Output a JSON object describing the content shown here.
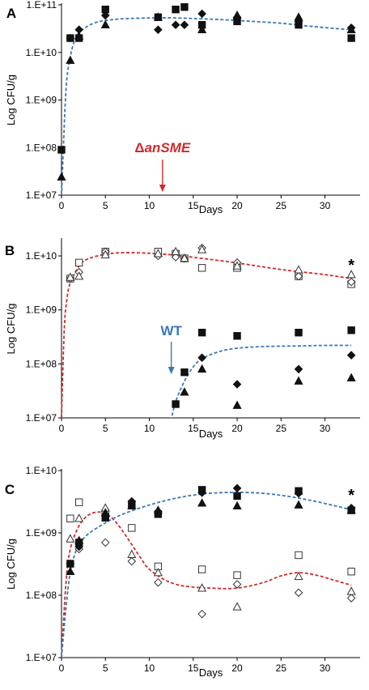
{
  "colors": {
    "blue_fit": "#3a78b8",
    "red_fit": "#d02a2a",
    "red_annotation": "#d02a2a",
    "blue_annotation": "#3a78b8"
  },
  "chart_data": [
    {
      "type": "scatter",
      "panel": "A",
      "xlabel": "Days",
      "ylabel": "Log CFU/g",
      "xlim": [
        0,
        34
      ],
      "ylim_log10": [
        7,
        11
      ],
      "x_ticks": [
        0,
        5,
        10,
        15,
        20,
        25,
        30
      ],
      "y_ticks": [
        "1.E+07",
        "1.E+08",
        "1.E+09",
        "1.E+10",
        "1.E+11"
      ],
      "annotation": {
        "text_prefix": "Δ",
        "text_main": "anSME",
        "x": 11.5,
        "color": "#d02a2a"
      },
      "series": [
        {
          "marker": "square",
          "fill": "filled",
          "points": [
            [
              0,
              90000000.0
            ],
            [
              1,
              20000000000.0
            ],
            [
              2,
              20000000000.0
            ],
            [
              5,
              80000000000.0
            ],
            [
              11,
              55000000000.0
            ],
            [
              13,
              80000000000.0
            ],
            [
              14,
              90000000000.0
            ],
            [
              16,
              38000000000.0
            ],
            [
              20,
              45000000000.0
            ],
            [
              27,
              38000000000.0
            ],
            [
              33,
              20000000000.0
            ]
          ]
        },
        {
          "marker": "diamond",
          "fill": "filled",
          "points": [
            [
              1,
              20000000000.0
            ],
            [
              2,
              30000000000.0
            ],
            [
              5,
              60000000000.0
            ],
            [
              11,
              30000000000.0
            ],
            [
              13,
              38000000000.0
            ],
            [
              14,
              38000000000.0
            ],
            [
              16,
              65000000000.0
            ],
            [
              20,
              55000000000.0
            ],
            [
              27,
              45000000000.0
            ],
            [
              33,
              33000000000.0
            ]
          ]
        },
        {
          "marker": "triangle",
          "fill": "filled",
          "points": [
            [
              0,
              24000000.0
            ],
            [
              1,
              6800000000.0
            ],
            [
              2,
              22000000000.0
            ],
            [
              5,
              38000000000.0
            ],
            [
              11,
              55000000000.0
            ],
            [
              16,
              30000000000.0
            ],
            [
              20,
              60000000000.0
            ],
            [
              27,
              55000000000.0
            ],
            [
              33,
              30000000000.0
            ]
          ]
        }
      ],
      "fits": [
        {
          "color": "#3a78b8",
          "points": [
            [
              0,
              9500000.0
            ],
            [
              0.5,
              1500000000.0
            ],
            [
              1,
              8000000000.0
            ],
            [
              1.5,
              18000000000.0
            ],
            [
              2,
              26000000000.0
            ],
            [
              3,
              36000000000.0
            ],
            [
              4,
              43000000000.0
            ],
            [
              5,
              47000000000.0
            ],
            [
              7,
              51000000000.0
            ],
            [
              10,
              53000000000.0
            ],
            [
              13,
              53000000000.0
            ],
            [
              16,
              51000000000.0
            ],
            [
              20,
              47000000000.0
            ],
            [
              25,
              41000000000.0
            ],
            [
              28,
              36000000000.0
            ],
            [
              31,
              32000000000.0
            ],
            [
              33,
              30000000000.0
            ]
          ]
        }
      ]
    },
    {
      "type": "scatter",
      "panel": "B",
      "xlabel": "Days",
      "ylabel": "Log CFU/g",
      "xlim": [
        0,
        34
      ],
      "ylim_log10": [
        7,
        10.3
      ],
      "x_ticks": [
        0,
        5,
        10,
        15,
        20,
        25,
        30
      ],
      "y_ticks": [
        "1.E+07",
        "1.E+08",
        "1.E+09",
        "1.E+10"
      ],
      "annotation": {
        "text": "WT",
        "x": 12.5,
        "color": "#3a78b8"
      },
      "asterisk": {
        "text": "*",
        "x": 33
      },
      "series": [
        {
          "marker": "square",
          "fill": "open",
          "points": [
            [
              1,
              3800000000.0
            ],
            [
              2,
              7500000000.0
            ],
            [
              5,
              12000000000.0
            ],
            [
              11,
              12000000000.0
            ],
            [
              13,
              11000000000.0
            ],
            [
              14,
              9000000000.0
            ],
            [
              16,
              6000000000.0
            ],
            [
              20,
              6000000000.0
            ],
            [
              27,
              4200000000.0
            ],
            [
              33,
              3000000000.0
            ]
          ]
        },
        {
          "marker": "diamond",
          "fill": "open",
          "points": [
            [
              1,
              3800000000.0
            ],
            [
              2,
              5000000000.0
            ],
            [
              5,
              12000000000.0
            ],
            [
              11,
              10000000000.0
            ],
            [
              13,
              9500000000.0
            ],
            [
              14,
              9000000000.0
            ],
            [
              16,
              14000000000.0
            ],
            [
              20,
              7500000000.0
            ],
            [
              27,
              4200000000.0
            ],
            [
              33,
              3300000000.0
            ]
          ]
        },
        {
          "marker": "triangle",
          "fill": "open",
          "points": [
            [
              1,
              4000000000.0
            ],
            [
              2,
              4200000000.0
            ],
            [
              5,
              10500000000.0
            ],
            [
              11,
              11000000000.0
            ],
            [
              13,
              12000000000.0
            ],
            [
              14,
              9000000000.0
            ],
            [
              16,
              13000000000.0
            ],
            [
              20,
              6500000000.0
            ],
            [
              27,
              5500000000.0
            ],
            [
              33,
              4500000000.0
            ]
          ]
        },
        {
          "marker": "square",
          "fill": "filled",
          "points": [
            [
              13,
              18000000.0
            ],
            [
              14,
              70000000.0
            ],
            [
              16,
              380000000.0
            ],
            [
              20,
              330000000.0
            ],
            [
              27,
              380000000.0
            ],
            [
              33,
              420000000.0
            ]
          ]
        },
        {
          "marker": "diamond",
          "fill": "filled",
          "points": [
            [
              16,
              130000000.0
            ],
            [
              20,
              42000000.0
            ],
            [
              27,
              80000000.0
            ],
            [
              33,
              145000000.0
            ]
          ]
        },
        {
          "marker": "triangle",
          "fill": "filled",
          "points": [
            [
              14,
              30000000.0
            ],
            [
              16,
              80000000.0
            ],
            [
              20,
              17000000.0
            ],
            [
              27,
              48000000.0
            ],
            [
              33,
              55000000.0
            ]
          ]
        }
      ],
      "fits": [
        {
          "color": "#d02a2a",
          "points": [
            [
              0,
              10000000.0
            ],
            [
              0.3,
              400000000.0
            ],
            [
              0.6,
              1500000000.0
            ],
            [
              1,
              3200000000.0
            ],
            [
              2,
              6500000000.0
            ],
            [
              3,
              8800000000.0
            ],
            [
              5,
              10700000000.0
            ],
            [
              7,
              11500000000.0
            ],
            [
              10,
              11200000000.0
            ],
            [
              13,
              10300000000.0
            ],
            [
              16,
              9000000000.0
            ],
            [
              20,
              7400000000.0
            ],
            [
              25,
              5600000000.0
            ],
            [
              30,
              4500000000.0
            ],
            [
              33,
              3800000000.0
            ]
          ]
        },
        {
          "color": "#3a78b8",
          "points": [
            [
              12,
              7500000.0
            ],
            [
              12.5,
              10000000.0
            ],
            [
              13,
              20000000.0
            ],
            [
              14,
              48000000.0
            ],
            [
              15,
              88000000.0
            ],
            [
              16,
              125000000.0
            ],
            [
              18,
              170000000.0
            ],
            [
              20,
              195000000.0
            ],
            [
              23,
              210000000.0
            ],
            [
              27,
              215000000.0
            ],
            [
              30,
              220000000.0
            ],
            [
              33,
              220000000.0
            ]
          ]
        }
      ]
    },
    {
      "type": "scatter",
      "panel": "C",
      "xlabel": "Days",
      "ylabel": "Log CFU/g",
      "xlim": [
        0,
        34
      ],
      "ylim_log10": [
        7,
        10
      ],
      "x_ticks": [
        0,
        5,
        10,
        15,
        20,
        25,
        30
      ],
      "y_ticks": [
        "1.E+07",
        "1.E+08",
        "1.E+09",
        "1.E+10"
      ],
      "asterisk": {
        "text": "*",
        "x": 33
      },
      "series": [
        {
          "marker": "square",
          "fill": "open",
          "points": [
            [
              1,
              1700000000.0
            ],
            [
              2,
              3100000000.0
            ],
            [
              5,
              2100000000.0
            ],
            [
              8,
              1200000000.0
            ],
            [
              11,
              290000000.0
            ],
            [
              16,
              260000000.0
            ],
            [
              20,
              210000000.0
            ],
            [
              27,
              440000000.0
            ],
            [
              33,
              240000000.0
            ]
          ]
        },
        {
          "marker": "diamond",
          "fill": "open",
          "points": [
            [
              1,
              320000000.0
            ],
            [
              2,
              550000000.0
            ],
            [
              5,
              700000000.0
            ],
            [
              8,
              350000000.0
            ],
            [
              11,
              160000000.0
            ],
            [
              16,
              50000000.0
            ],
            [
              20,
              150000000.0
            ],
            [
              27,
              110000000.0
            ],
            [
              33,
              90000000.0
            ]
          ]
        },
        {
          "marker": "triangle",
          "fill": "open",
          "points": [
            [
              1,
              800000000.0
            ],
            [
              2,
              1700000000.0
            ],
            [
              5,
              2500000000.0
            ],
            [
              8,
              450000000.0
            ],
            [
              11,
              230000000.0
            ],
            [
              16,
              130000000.0
            ],
            [
              20,
              65000000.0
            ],
            [
              27,
              200000000.0
            ],
            [
              33,
              115000000.0
            ]
          ]
        },
        {
          "marker": "square",
          "fill": "filled",
          "points": [
            [
              1,
              320000000.0
            ],
            [
              2,
              700000000.0
            ],
            [
              5,
              1750000000.0
            ],
            [
              8,
              2900000000.0
            ],
            [
              11,
              2000000000.0
            ],
            [
              16,
              4900000000.0
            ],
            [
              20,
              3900000000.0
            ],
            [
              27,
              4700000000.0
            ],
            [
              33,
              2300000000.0
            ]
          ]
        },
        {
          "marker": "diamond",
          "fill": "filled",
          "points": [
            [
              1,
              320000000.0
            ],
            [
              2,
              600000000.0
            ],
            [
              5,
              1900000000.0
            ],
            [
              8,
              3200000000.0
            ],
            [
              11,
              2200000000.0
            ],
            [
              16,
              4400000000.0
            ],
            [
              20,
              5200000000.0
            ],
            [
              27,
              4300000000.0
            ],
            [
              33,
              2500000000.0
            ]
          ]
        },
        {
          "marker": "triangle",
          "fill": "filled",
          "points": [
            [
              1,
              240000000.0
            ],
            [
              2,
              750000000.0
            ],
            [
              5,
              2100000000.0
            ],
            [
              8,
              2700000000.0
            ],
            [
              11,
              2300000000.0
            ],
            [
              16,
              3000000000.0
            ],
            [
              20,
              2700000000.0
            ],
            [
              27,
              2800000000.0
            ],
            [
              33,
              2300000000.0
            ]
          ]
        }
      ],
      "fits": [
        {
          "color": "#d02a2a",
          "points": [
            [
              0,
              10000000.0
            ],
            [
              0.5,
              150000000.0
            ],
            [
              1,
              550000000.0
            ],
            [
              2,
              1300000000.0
            ],
            [
              3,
              1900000000.0
            ],
            [
              4,
              2150000000.0
            ],
            [
              5,
              2050000000.0
            ],
            [
              6,
              1600000000.0
            ],
            [
              7,
              1050000000.0
            ],
            [
              8,
              650000000.0
            ],
            [
              9,
              400000000.0
            ],
            [
              10,
              260000000.0
            ],
            [
              12,
              170000000.0
            ],
            [
              14,
              140000000.0
            ],
            [
              17,
              130000000.0
            ],
            [
              20,
              130000000.0
            ],
            [
              23,
              160000000.0
            ],
            [
              25,
              205000000.0
            ],
            [
              27,
              230000000.0
            ],
            [
              29,
              210000000.0
            ],
            [
              31,
              175000000.0
            ],
            [
              33,
              145000000.0
            ]
          ]
        },
        {
          "color": "#3a78b8",
          "points": [
            [
              0,
              10000000.0
            ],
            [
              0.5,
              60000000.0
            ],
            [
              1,
              240000000.0
            ],
            [
              1.5,
              450000000.0
            ],
            [
              2,
              650000000.0
            ],
            [
              3,
              950000000.0
            ],
            [
              5,
              1450000000.0
            ],
            [
              7,
              2000000000.0
            ],
            [
              10,
              2800000000.0
            ],
            [
              13,
              3600000000.0
            ],
            [
              16,
              4200000000.0
            ],
            [
              19,
              4450000000.0
            ],
            [
              22,
              4400000000.0
            ],
            [
              25,
              4000000000.0
            ],
            [
              28,
              3400000000.0
            ],
            [
              31,
              2750000000.0
            ],
            [
              33,
              2350000000.0
            ]
          ]
        }
      ]
    }
  ]
}
